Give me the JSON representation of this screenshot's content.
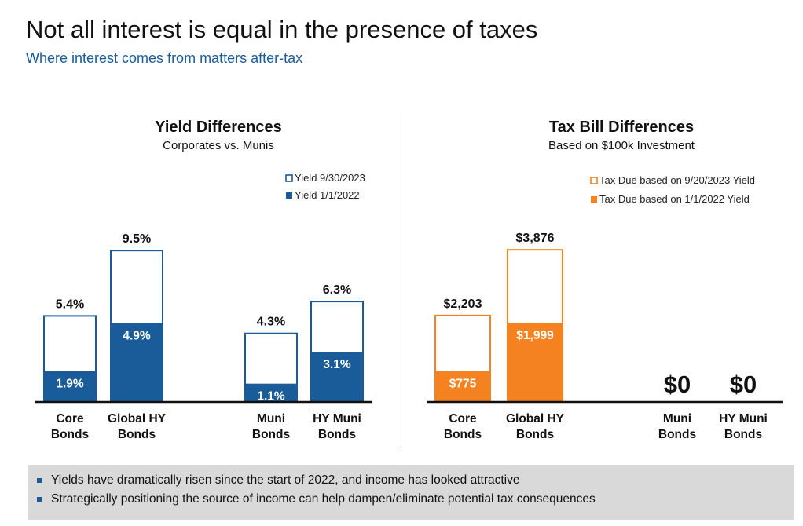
{
  "header": {
    "title": "Not all interest is equal in the presence of taxes",
    "subtitle": "Where interest comes from matters after-tax"
  },
  "colors": {
    "blue": "#1a5c99",
    "orange": "#f58220",
    "subtitle_blue": "#1a5c99"
  },
  "chart_data": [
    {
      "type": "bar",
      "title": "Yield Differences",
      "subtitle": "Corporates vs. Munis",
      "categories": [
        [
          "Core",
          "Bonds"
        ],
        [
          "Global HY",
          "Bonds"
        ],
        [
          "Muni",
          "Bonds"
        ],
        [
          "HY Muni",
          "Bonds"
        ]
      ],
      "unit": "%",
      "ylim": [
        0,
        11
      ],
      "legend_position": "top-right",
      "series": [
        {
          "name": "Yield 9/30/2023",
          "style": "outline",
          "values": [
            5.4,
            9.5,
            4.3,
            6.3
          ],
          "labels": [
            "5.4%",
            "9.5%",
            "4.3%",
            "6.3%"
          ]
        },
        {
          "name": "Yield 1/1/2022",
          "style": "filled",
          "values": [
            1.9,
            4.9,
            1.1,
            3.1
          ],
          "labels": [
            "1.9%",
            "4.9%",
            "1.1%",
            "3.1%"
          ]
        }
      ]
    },
    {
      "type": "bar",
      "title": "Tax Bill Differences",
      "subtitle": "Based on $100k Investment",
      "categories": [
        [
          "Core",
          "Bonds"
        ],
        [
          "Global HY",
          "Bonds"
        ],
        [
          "Muni",
          "Bonds"
        ],
        [
          "HY Muni",
          "Bonds"
        ]
      ],
      "unit": "$",
      "ylim": [
        0,
        4500
      ],
      "legend_position": "top-right",
      "series": [
        {
          "name": "Tax Due based on 9/20/2023 Yield",
          "style": "outline",
          "values": [
            2203,
            3876,
            0,
            0
          ],
          "labels": [
            "$2,203",
            "$3,876",
            "$0",
            "$0"
          ]
        },
        {
          "name": "Tax Due based on 1/1/2022 Yield",
          "style": "filled",
          "values": [
            775,
            1999,
            0,
            0
          ],
          "labels": [
            "$775",
            "$1,999",
            "",
            ""
          ]
        }
      ]
    }
  ],
  "footer": {
    "bullets": [
      "Yields have dramatically risen since the start of 2022, and income has looked attractive",
      "Strategically positioning the source of income can help dampen/eliminate potential tax consequences"
    ]
  }
}
